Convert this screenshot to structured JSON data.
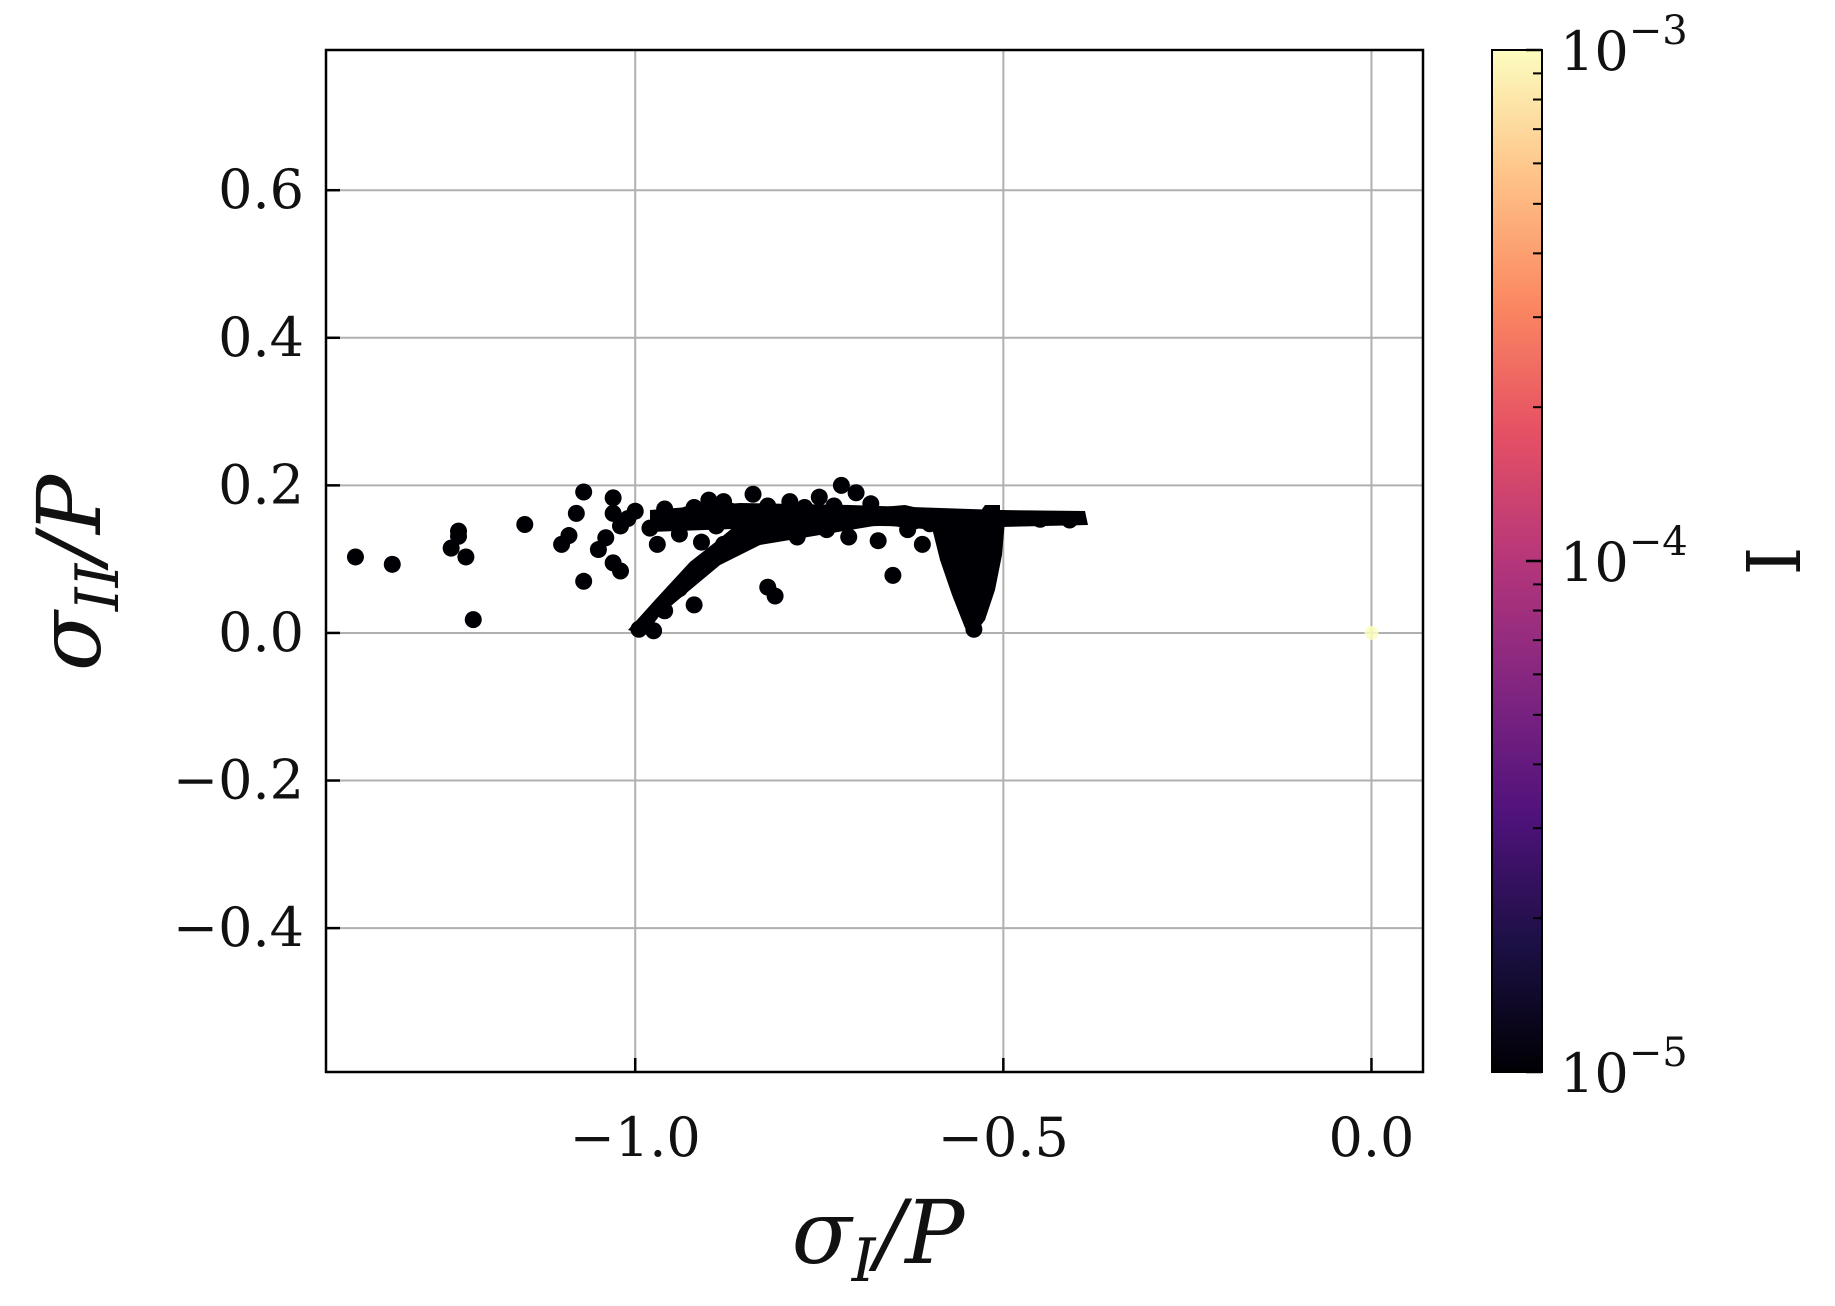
{
  "chart_data": {
    "type": "scatter",
    "title": "",
    "xlabel": {
      "main": "σ",
      "sub": "I",
      "suffix": "/P"
    },
    "ylabel": {
      "main": "σ",
      "sub": "II",
      "suffix": "/P"
    },
    "xlim": [
      -1.42,
      0.07
    ],
    "ylim": [
      -0.595,
      0.79
    ],
    "xticks": [
      -1.0,
      -0.5,
      0.0
    ],
    "xtick_labels": [
      "−1.0",
      "−0.5",
      "0.0"
    ],
    "yticks": [
      -0.4,
      -0.2,
      0.0,
      0.2,
      0.4,
      0.6
    ],
    "ytick_labels": [
      "−0.4",
      "−0.2",
      "0.0",
      "0.2",
      "0.4",
      "0.6"
    ],
    "grid": true,
    "colorbar": {
      "label": "I",
      "scale": "log",
      "range": [
        1e-05,
        0.001
      ],
      "tick_labels": [
        {
          "base": "10",
          "exp": "−5",
          "value": 1e-05
        },
        {
          "base": "10",
          "exp": "−4",
          "value": 0.0001
        },
        {
          "base": "10",
          "exp": "−3",
          "value": 0.001
        }
      ],
      "colormap": "magma",
      "colors": [
        "#000004",
        "#1c1044",
        "#4f127b",
        "#812581",
        "#b5367a",
        "#e55064",
        "#fb8761",
        "#fec287",
        "#fcfdbf"
      ]
    },
    "series": [
      {
        "color": "#000004",
        "points": [
          [
            -1.38,
            0.103
          ],
          [
            -1.33,
            0.093
          ],
          [
            -1.25,
            0.115
          ],
          [
            -1.24,
            0.138
          ],
          [
            -1.24,
            0.131
          ],
          [
            -1.23,
            0.103
          ],
          [
            -1.22,
            0.018
          ],
          [
            -1.15,
            0.147
          ],
          [
            -1.1,
            0.12
          ],
          [
            -1.09,
            0.132
          ],
          [
            -1.08,
            0.162
          ],
          [
            -1.07,
            0.191
          ],
          [
            -1.07,
            0.07
          ],
          [
            -1.05,
            0.113
          ],
          [
            -1.04,
            0.129
          ],
          [
            -1.03,
            0.183
          ],
          [
            -1.03,
            0.162
          ],
          [
            -1.03,
            0.095
          ],
          [
            -1.02,
            0.145
          ],
          [
            -1.02,
            0.084
          ],
          [
            -1.01,
            0.155
          ],
          [
            -1.0,
            0.165
          ],
          [
            -0.98,
            0.142
          ],
          [
            -0.97,
            0.12
          ],
          [
            -0.96,
            0.168
          ],
          [
            -0.95,
            0.155
          ],
          [
            -0.94,
            0.134
          ],
          [
            -0.93,
            0.16
          ],
          [
            -0.92,
            0.038
          ],
          [
            -0.92,
            0.17
          ],
          [
            -0.91,
            0.123
          ],
          [
            -0.9,
            0.18
          ],
          [
            -0.89,
            0.145
          ],
          [
            -0.88,
            0.178
          ],
          [
            -0.87,
            0.165
          ],
          [
            -0.86,
            0.124
          ],
          [
            -0.85,
            0.155
          ],
          [
            -0.84,
            0.188
          ],
          [
            -0.83,
            0.14
          ],
          [
            -0.82,
            0.172
          ],
          [
            -0.82,
            0.062
          ],
          [
            -0.81,
            0.05
          ],
          [
            -0.8,
            0.15
          ],
          [
            -0.79,
            0.178
          ],
          [
            -0.78,
            0.13
          ],
          [
            -0.77,
            0.17
          ],
          [
            -0.76,
            0.16
          ],
          [
            -0.75,
            0.184
          ],
          [
            -0.74,
            0.14
          ],
          [
            -0.73,
            0.172
          ],
          [
            -0.72,
            0.2
          ],
          [
            -0.71,
            0.13
          ],
          [
            -0.7,
            0.19
          ],
          [
            -0.69,
            0.155
          ],
          [
            -0.68,
            0.175
          ],
          [
            -0.67,
            0.125
          ],
          [
            -0.66,
            0.16
          ],
          [
            -0.65,
            0.078
          ],
          [
            -0.64,
            0.155
          ],
          [
            -0.63,
            0.14
          ],
          [
            -0.62,
            0.152
          ],
          [
            -0.61,
            0.12
          ],
          [
            -0.6,
            0.148
          ],
          [
            -0.59,
            0.153
          ],
          [
            -0.58,
            0.15
          ],
          [
            -0.54,
            0.005
          ],
          [
            -0.5,
            0.155
          ],
          [
            -0.45,
            0.154
          ],
          [
            -0.41,
            0.153
          ],
          [
            -0.995,
            0.005
          ],
          [
            -0.975,
            0.003
          ],
          [
            -0.96,
            0.03
          ],
          [
            -0.94,
            0.06
          ],
          [
            -0.92,
            0.08
          ],
          [
            -0.9,
            0.1
          ],
          [
            -0.88,
            0.12
          ],
          [
            -0.55,
            0.04
          ],
          [
            -0.53,
            0.07
          ],
          [
            -0.57,
            0.1
          ],
          [
            -0.52,
            0.12
          ],
          [
            -0.56,
            0.13
          ],
          [
            -0.53,
            0.14
          ],
          [
            0.0,
            0.0
          ]
        ]
      }
    ]
  }
}
